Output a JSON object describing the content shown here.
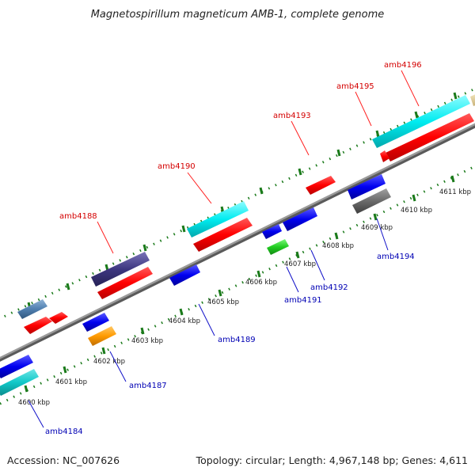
{
  "title": "Magnetospirillum magneticum AMB-1, complete genome",
  "footer": {
    "accession": "Accession: NC_007626",
    "topology": "Topology: circular; Length: 4,967,148 bp; Genes: 4,611"
  },
  "backbone_color": "#8a8a8a",
  "tick_color": "#1a7a1a",
  "kbp_labels": [
    "4600 kbp",
    "4601 kbp",
    "4602 kbp",
    "4603 kbp",
    "4604 kbp",
    "4605 kbp",
    "4606 kbp",
    "4607 kbp",
    "4608 kbp",
    "4609 kbp",
    "4610 kbp",
    "4611 kbp"
  ],
  "gene_labels": {
    "amb4184": "amb4184",
    "amb4187": "amb4187",
    "amb4188": "amb4188",
    "amb4189": "amb4189",
    "amb4190": "amb4190",
    "amb4191": "amb4191",
    "amb4192": "amb4192",
    "amb4193": "amb4193",
    "amb4194": "amb4194",
    "amb4195": "amb4195",
    "amb4196": "amb4196"
  }
}
